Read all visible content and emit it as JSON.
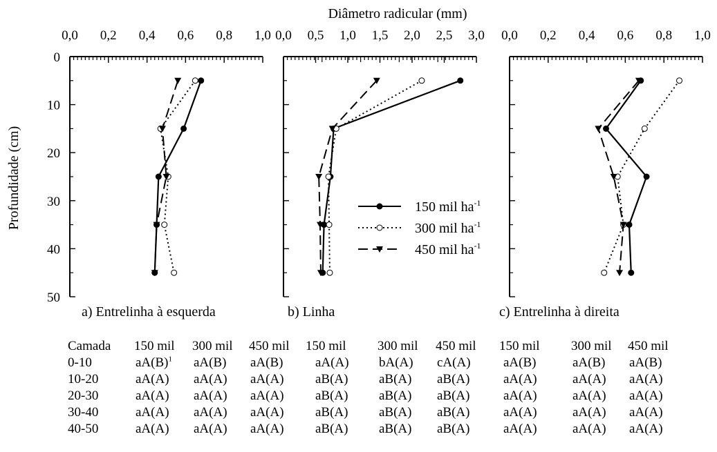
{
  "figure": {
    "top_axis_label": "Diâmetro radicular (mm)",
    "y_axis_label": "Profundidade (cm)",
    "y_ticks": [
      "0",
      "10",
      "20",
      "30",
      "40",
      "50"
    ]
  },
  "chart_data": [
    {
      "type": "line",
      "title": "a) Entrelinha à esquerda",
      "xlabel": "Diâmetro radicular (mm)",
      "ylabel": "Profundidade (cm)",
      "xlim": [
        0,
        1.0
      ],
      "ylim": [
        50,
        0
      ],
      "x_tick_labels": [
        "0,0",
        "0,2",
        "0,4",
        "0,6",
        "0,8",
        "1,0"
      ],
      "series": [
        {
          "name": "150 mil ha-1",
          "depth": [
            5,
            15,
            25,
            35,
            45
          ],
          "values": [
            0.68,
            0.59,
            0.46,
            0.45,
            0.44
          ]
        },
        {
          "name": "300 mil ha-1",
          "depth": [
            5,
            15,
            25,
            35,
            45
          ],
          "values": [
            0.65,
            0.47,
            0.51,
            0.49,
            0.54
          ]
        },
        {
          "name": "450 mil ha-1",
          "depth": [
            5,
            15,
            25,
            35,
            45
          ],
          "values": [
            0.56,
            0.48,
            0.5,
            0.45,
            0.44
          ]
        }
      ]
    },
    {
      "type": "line",
      "title": "b) Linha",
      "xlabel": "Diâmetro radicular (mm)",
      "ylabel": "Profundidade (cm)",
      "xlim": [
        0,
        3.0
      ],
      "ylim": [
        50,
        0
      ],
      "x_tick_labels": [
        "0,0",
        "0,5",
        "1,0",
        "1,5",
        "2,0",
        "2,5",
        "3,0"
      ],
      "series": [
        {
          "name": "150 mil ha-1",
          "depth": [
            5,
            15,
            25,
            35,
            45
          ],
          "values": [
            2.75,
            0.78,
            0.73,
            0.63,
            0.61
          ]
        },
        {
          "name": "300 mil ha-1",
          "depth": [
            5,
            15,
            25,
            35,
            45
          ],
          "values": [
            2.15,
            0.82,
            0.7,
            0.71,
            0.72
          ]
        },
        {
          "name": "450 mil ha-1",
          "depth": [
            5,
            15,
            25,
            35,
            45
          ],
          "values": [
            1.45,
            0.76,
            0.55,
            0.57,
            0.58
          ]
        }
      ]
    },
    {
      "type": "line",
      "title": "c) Entrelinha à direita",
      "xlabel": "Diâmetro radicular (mm)",
      "ylabel": "Profundidade (cm)",
      "xlim": [
        0,
        1.0
      ],
      "ylim": [
        50,
        0
      ],
      "x_tick_labels": [
        "0,0",
        "0,2",
        "0,4",
        "0,6",
        "0,8",
        "1,0"
      ],
      "series": [
        {
          "name": "150 mil ha-1",
          "depth": [
            5,
            15,
            25,
            35,
            45
          ],
          "values": [
            0.68,
            0.5,
            0.71,
            0.62,
            0.63
          ]
        },
        {
          "name": "300 mil ha-1",
          "depth": [
            5,
            15,
            25,
            35,
            45
          ],
          "values": [
            0.88,
            0.7,
            0.56,
            0.59,
            0.49
          ]
        },
        {
          "name": "450 mil ha-1",
          "depth": [
            5,
            15,
            25,
            35,
            45
          ],
          "values": [
            0.67,
            0.46,
            0.54,
            0.59,
            0.57
          ]
        }
      ]
    }
  ],
  "legend": {
    "entries": [
      {
        "text": "150 mil ha",
        "sup": "-1"
      },
      {
        "text": "300 mil ha",
        "sup": "-1"
      },
      {
        "text": "450 mil ha",
        "sup": "-1"
      }
    ]
  },
  "stats_table": {
    "headers": [
      "Camada",
      "150 mil",
      "300 mil",
      "450 mil",
      "150 mil",
      "300 mil",
      "450 mil",
      "150 mil",
      "300 mil",
      "450 mil"
    ],
    "footnote_mark": "1",
    "rows": [
      [
        "0-10",
        "aA(B)",
        "aA(B)",
        "aA(B)",
        "aA(A)",
        "bA(A)",
        "cA(A)",
        "aA(B)",
        "aA(B)",
        "aA(B)"
      ],
      [
        "10-20",
        "aA(A)",
        "aA(A)",
        "aA(A)",
        "aB(A)",
        "aB(A)",
        "aB(A)",
        "aA(A)",
        "aA(A)",
        "aA(A)"
      ],
      [
        "20-30",
        "aA(A)",
        "aA(A)",
        "aA(A)",
        "aB(A)",
        "aB(A)",
        "aB(A)",
        "aA(A)",
        "aA(A)",
        "aA(A)"
      ],
      [
        "30-40",
        "aA(A)",
        "aA(A)",
        "aA(A)",
        "aB(A)",
        "aB(A)",
        "aB(A)",
        "aA(A)",
        "aA(A)",
        "aA(A)"
      ],
      [
        "40-50",
        "aA(A)",
        "aA(A)",
        "aA(A)",
        "aB(A)",
        "aB(A)",
        "aB(A)",
        "aA(A)",
        "aA(A)",
        "aA(A)"
      ]
    ]
  }
}
